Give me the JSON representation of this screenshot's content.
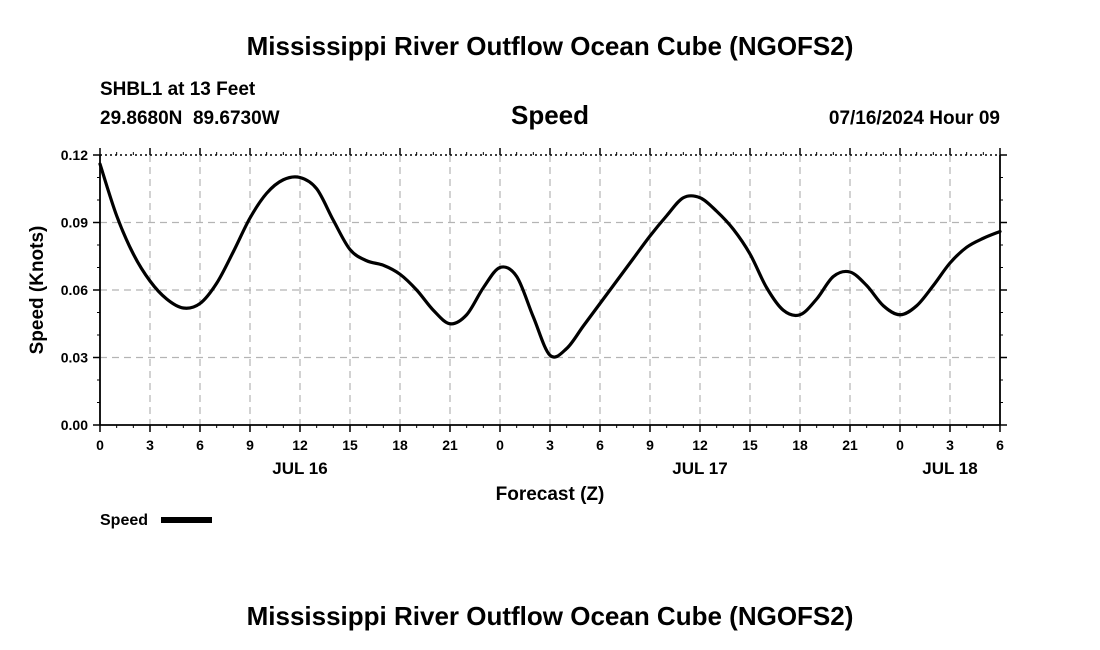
{
  "chart_data": {
    "type": "line",
    "title": "Mississippi River Outflow Ocean Cube (NGOFS2)",
    "subtitle": "Speed",
    "station_label": "SHBL1 at 13 Feet",
    "coords_label": "29.8680N  89.6730W",
    "timestamp_label": "07/16/2024 Hour 09",
    "footer_title": "Mississippi River Outflow Ocean Cube (NGOFS2)",
    "xlabel": "Forecast (Z)",
    "ylabel": "Speed (Knots)",
    "xlim": [
      0,
      54
    ],
    "ylim": [
      0,
      0.12
    ],
    "y_ticks": [
      0,
      0.03,
      0.06,
      0.09,
      0.12
    ],
    "y_tick_labels": [
      "0.00",
      "0.03",
      "0.06",
      "0.09",
      "0.12"
    ],
    "x_ticks": [
      0,
      3,
      6,
      9,
      12,
      15,
      18,
      21,
      24,
      27,
      30,
      33,
      36,
      39,
      42,
      45,
      48,
      51,
      54
    ],
    "x_tick_labels": [
      "0",
      "3",
      "6",
      "9",
      "12",
      "15",
      "18",
      "21",
      "0",
      "3",
      "6",
      "9",
      "12",
      "15",
      "18",
      "21",
      "0",
      "3",
      "6"
    ],
    "day_labels": [
      {
        "x": 12,
        "label": "JUL 16"
      },
      {
        "x": 36,
        "label": "JUL 17"
      },
      {
        "x": 51,
        "label": "JUL 18"
      }
    ],
    "grid": true,
    "legend_position": "bottom-left",
    "series": [
      {
        "name": "Speed",
        "color": "#000000",
        "x": [
          0,
          1,
          2,
          3,
          4,
          5,
          6,
          7,
          8,
          9,
          10,
          11,
          12,
          13,
          14,
          15,
          16,
          17,
          18,
          19,
          20,
          21,
          22,
          23,
          24,
          25,
          26,
          27,
          28,
          29,
          30,
          31,
          32,
          33,
          34,
          35,
          36,
          37,
          38,
          39,
          40,
          41,
          42,
          43,
          44,
          45,
          46,
          47,
          48,
          49,
          50,
          51,
          52,
          53,
          54
        ],
        "values": [
          0.116,
          0.093,
          0.076,
          0.064,
          0.056,
          0.052,
          0.054,
          0.063,
          0.077,
          0.092,
          0.103,
          0.109,
          0.11,
          0.105,
          0.091,
          0.078,
          0.073,
          0.071,
          0.067,
          0.06,
          0.051,
          0.045,
          0.049,
          0.061,
          0.07,
          0.066,
          0.048,
          0.031,
          0.034,
          0.044,
          0.054,
          0.064,
          0.074,
          0.084,
          0.093,
          0.101,
          0.101,
          0.095,
          0.087,
          0.076,
          0.061,
          0.051,
          0.049,
          0.056,
          0.066,
          0.068,
          0.062,
          0.053,
          0.049,
          0.053,
          0.062,
          0.072,
          0.079,
          0.083,
          0.086
        ]
      }
    ]
  }
}
